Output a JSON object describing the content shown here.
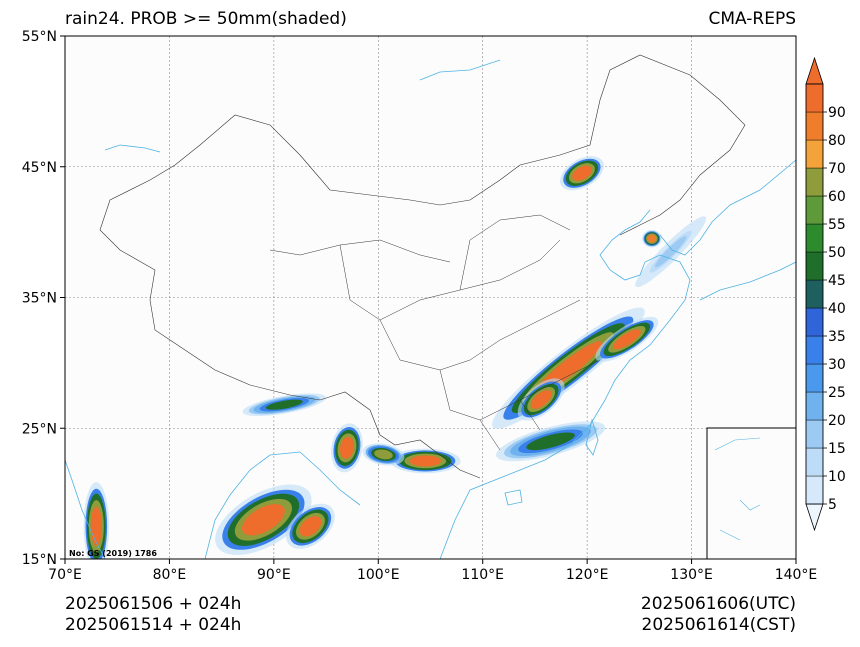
{
  "header": {
    "title_left": "rain24. PROB >= 50mm(shaded)",
    "title_right": "CMA-REPS"
  },
  "footer": {
    "init_utc": "2025061506  +  024h",
    "init_cst": "2025061514  +  024h",
    "valid_utc": "2025061606(UTC)",
    "valid_cst": "2025061614(CST)"
  },
  "map": {
    "lon_range": [
      70,
      140
    ],
    "lat_range": [
      15,
      55
    ],
    "lon_ticks": [
      {
        "value": 70,
        "label": "70°E"
      },
      {
        "value": 80,
        "label": "80°E"
      },
      {
        "value": 90,
        "label": "90°E"
      },
      {
        "value": 100,
        "label": "100°E"
      },
      {
        "value": 110,
        "label": "110°E"
      },
      {
        "value": 120,
        "label": "120°E"
      },
      {
        "value": 130,
        "label": "130°E"
      },
      {
        "value": 140,
        "label": "140°E"
      }
    ],
    "lat_ticks": [
      {
        "value": 15,
        "label": "15°N"
      },
      {
        "value": 25,
        "label": "25°N"
      },
      {
        "value": 35,
        "label": "35°N"
      },
      {
        "value": 45,
        "label": "45°N"
      },
      {
        "value": 55,
        "label": "55°N"
      }
    ],
    "map_approval_no": "No: GS (2019) 1786",
    "gridlines": true,
    "inset": "South China Sea inset, bottom-right"
  },
  "colorbar": {
    "levels": [
      5,
      10,
      15,
      20,
      25,
      30,
      35,
      40,
      45,
      50,
      55,
      60,
      70,
      80,
      90
    ],
    "colors": [
      "#d6e9fb",
      "#bcdcf7",
      "#9ccaf2",
      "#6fb2ee",
      "#4b99ec",
      "#3a80ea",
      "#2f65d8",
      "#1e5f5f",
      "#1f6e2a",
      "#2d8a2d",
      "#5e9a3a",
      "#8e9c3c",
      "#f4a23a",
      "#f07d2c",
      "#ee6c2c"
    ],
    "extend": "both"
  },
  "rain_regions": [
    {
      "name": "jiangnan-band",
      "lon": 118.2,
      "lat": 29.6,
      "rlon": 6.8,
      "rlat": 1.0,
      "rot": -38,
      "level": 90
    },
    {
      "name": "jiangnan-band-east",
      "lon": 123.8,
      "lat": 31.8,
      "rlon": 2.6,
      "rlat": 0.7,
      "rot": -33,
      "level": 90
    },
    {
      "name": "jiangnan-band-west",
      "lon": 115.6,
      "lat": 27.2,
      "rlon": 2.0,
      "rlat": 0.8,
      "rot": -40,
      "level": 90
    },
    {
      "name": "southern-china-coast",
      "lon": 116.5,
      "lat": 24.0,
      "rlon": 4.0,
      "rlat": 0.8,
      "rot": -15,
      "level": 45
    },
    {
      "name": "guangxi-yunnan",
      "lon": 104.5,
      "lat": 22.5,
      "rlon": 2.5,
      "rlat": 0.7,
      "rot": 0,
      "level": 90
    },
    {
      "name": "yunnan-south",
      "lon": 100.5,
      "lat": 23.0,
      "rlon": 1.5,
      "rlat": 0.6,
      "rot": 10,
      "level": 60
    },
    {
      "name": "northeast-inner-mongolia",
      "lon": 119.5,
      "lat": 44.5,
      "rlon": 1.7,
      "rlat": 0.8,
      "rot": -30,
      "level": 90
    },
    {
      "name": "northeast-jilin",
      "lon": 126.2,
      "lat": 39.5,
      "rlon": 0.7,
      "rlat": 0.5,
      "rot": 0,
      "level": 80
    },
    {
      "name": "tibet-south",
      "lon": 91.0,
      "lat": 26.8,
      "rlon": 3.0,
      "rlat": 0.5,
      "rot": -10,
      "level": 45
    },
    {
      "name": "myanmar",
      "lon": 97.0,
      "lat": 23.5,
      "rlon": 1.1,
      "rlat": 1.4,
      "rot": 10,
      "level": 90
    },
    {
      "name": "bay-of-bengal",
      "lon": 89.0,
      "lat": 18.0,
      "rlon": 3.8,
      "rlat": 1.5,
      "rot": -30,
      "level": 90
    },
    {
      "name": "bay-of-bengal-east",
      "lon": 93.5,
      "lat": 17.5,
      "rlon": 2.0,
      "rlat": 1.0,
      "rot": -40,
      "level": 90
    },
    {
      "name": "arabian-west",
      "lon": 73.0,
      "lat": 17.5,
      "rlon": 0.9,
      "rlat": 2.5,
      "rot": 0,
      "level": 90
    },
    {
      "name": "ne-korea-sea",
      "lon": 128.0,
      "lat": 38.5,
      "rlon": 3.5,
      "rlat": 0.5,
      "rot": -45,
      "level": 15
    }
  ]
}
